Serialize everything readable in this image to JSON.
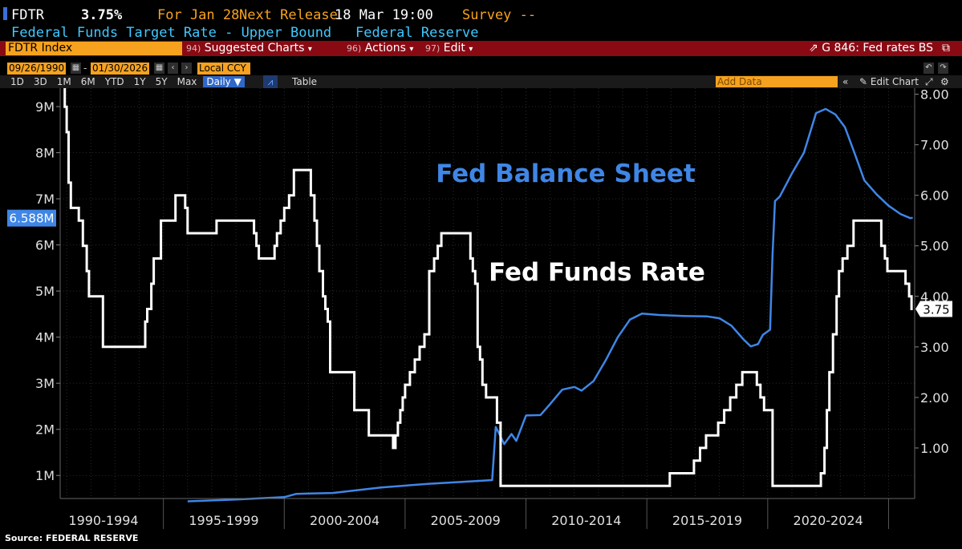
{
  "header": {
    "ticker": "FDTR",
    "value": "3.75%",
    "for_label": "For Jan 28",
    "next_release_label": "Next Release",
    "next_release_date": "18 Mar 19:00",
    "survey_label": "Survey --",
    "description": "Federal Funds Target Rate - Upper Bound",
    "source_name": "Federal Reserve"
  },
  "toolbar": {
    "security": "FDTR Index",
    "suggested_num": "94)",
    "suggested": "Suggested Charts",
    "actions_num": "96)",
    "actions": "Actions",
    "edit_num": "97)",
    "edit": "Edit",
    "chart_id": "G 846: Fed rates BS"
  },
  "controls": {
    "start_date": "09/26/1990",
    "end_date": "01/30/2026",
    "currency": "Local CCY",
    "dash": "-"
  },
  "ranges": {
    "items": [
      "1D",
      "3D",
      "1M",
      "6M",
      "YTD",
      "1Y",
      "5Y",
      "Max"
    ],
    "frequency": "Daily",
    "table_label": "Table",
    "add_data_placeholder": "Add Data",
    "edit_chart": "Edit Chart"
  },
  "colors": {
    "balance_sheet": "#3f86e6",
    "fed_funds": "#ffffff",
    "accent_orange": "#f7a21e",
    "bar_red": "#8a0a14"
  },
  "chart_data": {
    "type": "line",
    "x_tick_labels": [
      "1990-1994",
      "1995-1999",
      "2000-2004",
      "2005-2009",
      "2010-2014",
      "2015-2019",
      "2020-2024"
    ],
    "xlim": [
      1990.73,
      2026.08
    ],
    "left_axis": {
      "ticks": [
        "1M",
        "2M",
        "3M",
        "4M",
        "5M",
        "6M",
        "7M",
        "8M",
        "9M"
      ],
      "ylim": [
        0.5,
        9.4
      ],
      "unit": "M"
    },
    "right_axis": {
      "ticks": [
        "1.00",
        "2.00",
        "3.00",
        "4.00",
        "5.00",
        "6.00",
        "7.00",
        "8.00"
      ],
      "ylim": [
        0.0,
        8.12
      ]
    },
    "annotations": {
      "balance_sheet_label": "Fed Balance Sheet",
      "fed_funds_label": "Fed Funds Rate",
      "balance_sheet_last": "6.588M",
      "fed_funds_last": "3.75"
    },
    "source": "Source: FEDERAL RESERVE",
    "series": [
      {
        "name": "Fed Balance Sheet",
        "axis": "left",
        "x": [
          1996.0,
          1998.0,
          2000.0,
          2000.5,
          2002.0,
          2004.0,
          2006.0,
          2008.0,
          2008.6,
          2008.75,
          2008.9,
          2009.1,
          2009.4,
          2009.6,
          2010.0,
          2010.6,
          2011.0,
          2011.5,
          2012.0,
          2012.3,
          2012.8,
          2013.3,
          2013.8,
          2014.3,
          2014.8,
          2015.5,
          2016.5,
          2017.5,
          2018.0,
          2018.5,
          2019.0,
          2019.3,
          2019.6,
          2019.8,
          2020.1,
          2020.2,
          2020.3,
          2020.5,
          2021.0,
          2021.5,
          2022.0,
          2022.4,
          2022.8,
          2023.2,
          2023.6,
          2024.0,
          2024.5,
          2025.0,
          2025.5,
          2025.9,
          2026.0
        ],
        "values": [
          0.44,
          0.48,
          0.53,
          0.6,
          0.62,
          0.74,
          0.82,
          0.88,
          0.9,
          2.05,
          1.9,
          1.68,
          1.9,
          1.75,
          2.3,
          2.31,
          2.55,
          2.86,
          2.92,
          2.84,
          3.05,
          3.5,
          4.0,
          4.38,
          4.51,
          4.48,
          4.46,
          4.45,
          4.41,
          4.25,
          3.95,
          3.8,
          3.85,
          4.05,
          4.16,
          5.8,
          6.95,
          7.05,
          7.55,
          8.0,
          8.86,
          8.95,
          8.83,
          8.55,
          7.98,
          7.4,
          7.1,
          6.85,
          6.67,
          6.58,
          6.59
        ]
      },
      {
        "name": "Fed Funds Rate",
        "axis": "right",
        "x": [
          1990.73,
          1990.92,
          1991.0,
          1991.08,
          1991.17,
          1991.33,
          1991.5,
          1991.67,
          1991.83,
          1991.92,
          1992.0,
          1992.5,
          1992.58,
          1994.0,
          1994.25,
          1994.33,
          1994.5,
          1994.6,
          1994.7,
          1994.9,
          1995.5,
          1995.9,
          1996.0,
          1997.2,
          1998.75,
          1998.85,
          1998.95,
          1999.5,
          1999.6,
          1999.7,
          1999.85,
          2000.0,
          2000.2,
          2000.4,
          2001.0,
          2001.1,
          2001.25,
          2001.35,
          2001.45,
          2001.6,
          2001.7,
          2001.8,
          2001.9,
          2002.9,
          2003.5,
          2004.5,
          2004.6,
          2004.7,
          2004.8,
          2004.9,
          2005.0,
          2005.2,
          2005.4,
          2005.6,
          2005.8,
          2006.0,
          2006.2,
          2006.35,
          2006.5,
          2007.7,
          2007.8,
          2007.9,
          2008.0,
          2008.1,
          2008.2,
          2008.35,
          2008.8,
          2008.95,
          2015.95,
          2016.95,
          2017.2,
          2017.45,
          2017.95,
          2018.2,
          2018.45,
          2018.7,
          2018.95,
          2019.55,
          2019.7,
          2019.85,
          2020.2,
          2022.2,
          2022.35,
          2022.45,
          2022.55,
          2022.7,
          2022.85,
          2022.95,
          2023.1,
          2023.3,
          2023.55,
          2024.7,
          2024.85,
          2024.95,
          2025.7,
          2025.85,
          2025.95
        ],
        "values": [
          8.25,
          7.75,
          7.25,
          6.25,
          5.75,
          5.75,
          5.5,
          5.0,
          4.5,
          4.0,
          4.0,
          3.0,
          3.0,
          3.0,
          3.5,
          3.75,
          4.25,
          4.75,
          4.75,
          5.5,
          6.0,
          5.75,
          5.25,
          5.5,
          5.25,
          5.0,
          4.75,
          4.75,
          5.0,
          5.25,
          5.5,
          5.75,
          6.0,
          6.5,
          6.5,
          6.0,
          5.5,
          5.0,
          4.5,
          4.0,
          3.75,
          3.5,
          2.5,
          1.75,
          1.25,
          1.0,
          1.25,
          1.5,
          1.75,
          2.0,
          2.25,
          2.5,
          2.75,
          3.0,
          3.25,
          4.5,
          4.75,
          5.0,
          5.25,
          4.75,
          4.5,
          4.25,
          3.0,
          2.75,
          2.25,
          2.0,
          1.5,
          0.25,
          0.5,
          0.75,
          1.0,
          1.25,
          1.5,
          1.75,
          2.0,
          2.25,
          2.5,
          2.25,
          2.0,
          1.75,
          0.25,
          0.5,
          1.0,
          1.75,
          2.5,
          3.25,
          4.0,
          4.5,
          4.75,
          5.0,
          5.5,
          5.0,
          4.75,
          4.5,
          4.25,
          4.0,
          3.75
        ]
      }
    ]
  }
}
